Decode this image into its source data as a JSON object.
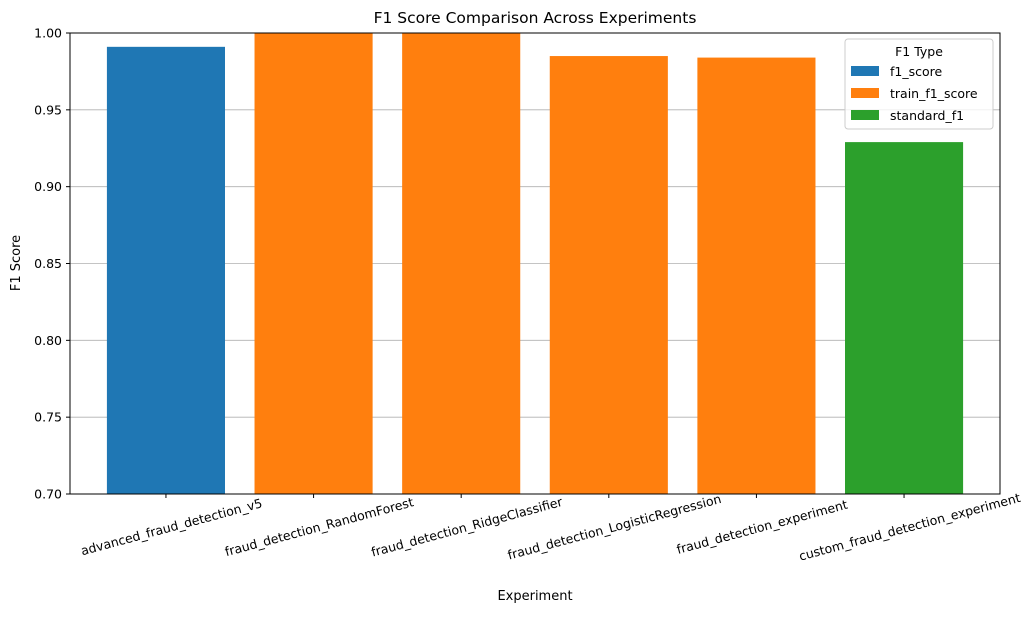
{
  "chart_data": {
    "type": "bar",
    "title": "F1 Score Comparison Across Experiments",
    "xlabel": "Experiment",
    "ylabel": "F1 Score",
    "ylim": [
      0.7,
      1.0
    ],
    "yticks": [
      0.7,
      0.75,
      0.8,
      0.85,
      0.9,
      0.95,
      1.0
    ],
    "ytick_labels": [
      "0.70",
      "0.75",
      "0.80",
      "0.85",
      "0.90",
      "0.95",
      "1.00"
    ],
    "grid": "y-axis horizontal lines",
    "categories": [
      "advanced_fraud_detection_v5",
      "fraud_detection_RandomForest",
      "fraud_detection_RidgeClassifier",
      "fraud_detection_LogisticRegression",
      "fraud_detection_experiment",
      "custom_fraud_detection_experiment"
    ],
    "values": [
      0.991,
      1.0,
      1.0,
      0.985,
      0.984,
      0.929
    ],
    "bar_types": [
      "f1_score",
      "train_f1_score",
      "train_f1_score",
      "train_f1_score",
      "train_f1_score",
      "standard_f1"
    ],
    "legend": {
      "title": "F1 Type",
      "placement": "top-right",
      "entries": [
        {
          "label": "f1_score",
          "color": "#1f77b4"
        },
        {
          "label": "train_f1_score",
          "color": "#ff7f0e"
        },
        {
          "label": "standard_f1",
          "color": "#2ca02c"
        }
      ]
    }
  }
}
